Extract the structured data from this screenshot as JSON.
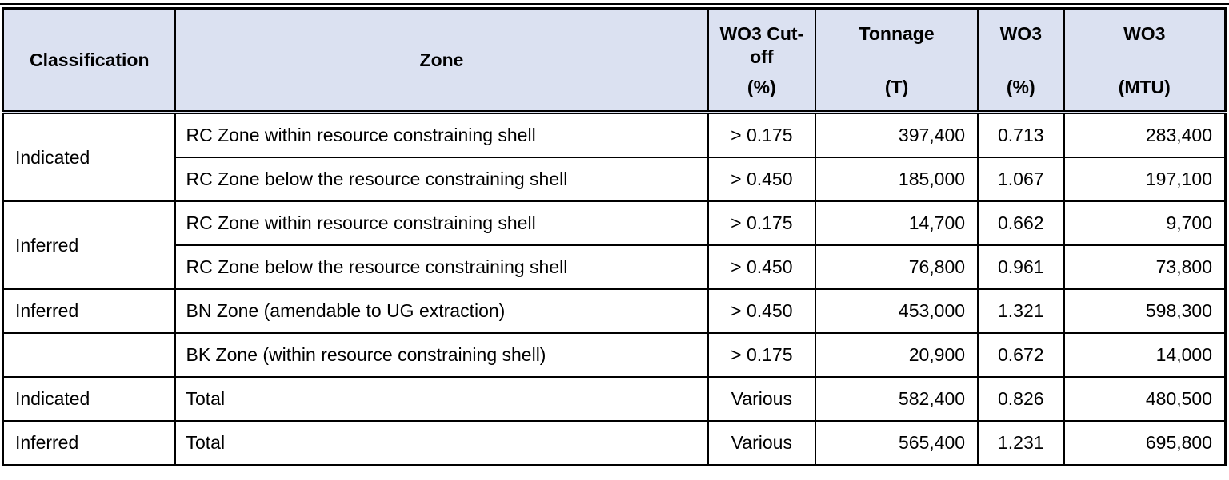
{
  "colors": {
    "header_bg": "#dbe1f1",
    "border": "#000000",
    "page_bg": "#ffffff"
  },
  "table": {
    "headers": [
      {
        "label": "Classification",
        "unit": ""
      },
      {
        "label": "Zone",
        "unit": ""
      },
      {
        "label": "WO3 Cut-off",
        "unit": "(%)"
      },
      {
        "label": "Tonnage",
        "unit": "(T)"
      },
      {
        "label": "WO3",
        "unit": "(%)"
      },
      {
        "label": "WO3",
        "unit": "(MTU)"
      }
    ],
    "rows": [
      {
        "classification": "Indicated",
        "zone": "RC Zone within resource constraining shell",
        "cutoff": "> 0.175",
        "tonnage": "397,400",
        "wo3_pct": "0.713",
        "wo3_mtu": "283,400"
      },
      {
        "classification": "",
        "zone": "RC Zone below the resource constraining shell",
        "cutoff": "> 0.450",
        "tonnage": "185,000",
        "wo3_pct": "1.067",
        "wo3_mtu": "197,100"
      },
      {
        "classification": "Inferred",
        "zone": "RC Zone within resource constraining shell",
        "cutoff": "> 0.175",
        "tonnage": "14,700",
        "wo3_pct": "0.662",
        "wo3_mtu": "9,700"
      },
      {
        "classification": "",
        "zone": "RC Zone below the resource constraining shell",
        "cutoff": "> 0.450",
        "tonnage": "76,800",
        "wo3_pct": "0.961",
        "wo3_mtu": "73,800"
      },
      {
        "classification": "Inferred",
        "zone": "BN Zone (amendable to UG extraction)",
        "cutoff": "> 0.450",
        "tonnage": "453,000",
        "wo3_pct": "1.321",
        "wo3_mtu": "598,300"
      },
      {
        "classification": "",
        "zone": "BK Zone (within resource constraining shell)",
        "cutoff": "> 0.175",
        "tonnage": "20,900",
        "wo3_pct": "0.672",
        "wo3_mtu": "14,000"
      },
      {
        "classification": "Indicated",
        "zone": "Total",
        "cutoff": "Various",
        "tonnage": "582,400",
        "wo3_pct": "0.826",
        "wo3_mtu": "480,500"
      },
      {
        "classification": "Inferred",
        "zone": "Total",
        "cutoff": "Various",
        "tonnage": "565,400",
        "wo3_pct": "1.231",
        "wo3_mtu": "695,800"
      }
    ]
  }
}
